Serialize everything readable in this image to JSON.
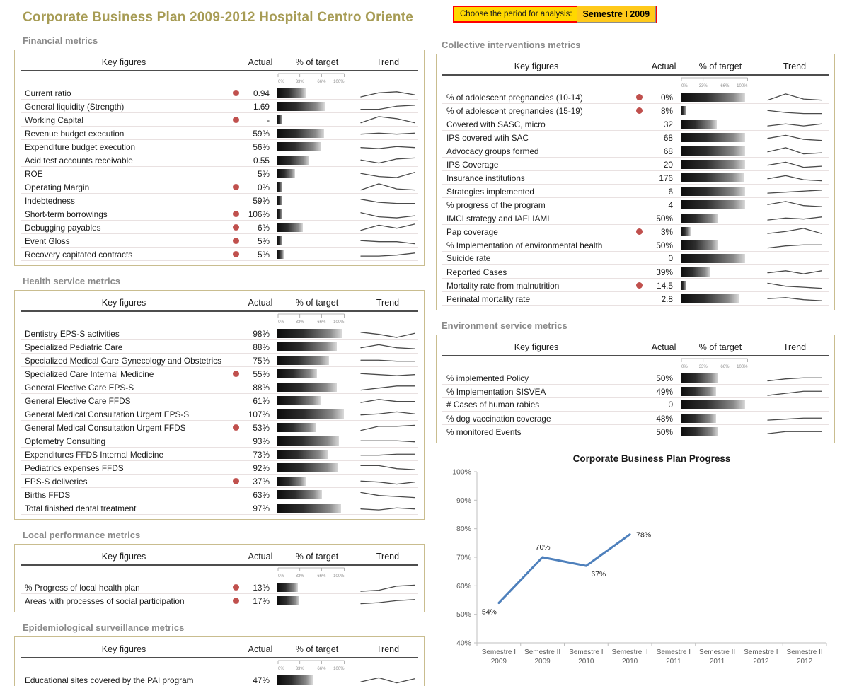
{
  "page_title": "Corporate Business Plan 2009-2012 Hospital Centro Oriente",
  "period_selector": {
    "label": "Choose the period for analysis:",
    "value": "Semestre I 2009"
  },
  "table_columns": {
    "key_figures": "Key figures",
    "actual": "Actual",
    "target": "% of target",
    "trend": "Trend"
  },
  "target_scale_labels": [
    "0%",
    "33%",
    "66%",
    "100%"
  ],
  "colors": {
    "title": "#A79C55",
    "section_title": "#8A8A8A",
    "table_border": "#C9BD8F",
    "alert_dot": "#C0504D",
    "bar_dark": "#0d0d0d",
    "chooser_bg": "#FFD800",
    "chooser_border": "#FF0000",
    "chart_line": "#4E80BC"
  },
  "tables": [
    {
      "id": "financial",
      "title": "Financial metrics",
      "column": "left",
      "rows": [
        {
          "name": "Current ratio",
          "alert": true,
          "actual": "0.94",
          "target_pct": 42,
          "trend": [
            1,
            5,
            6,
            3
          ]
        },
        {
          "name": "General liquidity (Strength)",
          "alert": false,
          "actual": "1.69",
          "target_pct": 70,
          "trend": [
            2,
            2,
            5,
            6
          ]
        },
        {
          "name": "Working Capital",
          "alert": true,
          "actual": "-",
          "target_pct": 7,
          "trend": [
            2,
            8,
            6,
            2
          ]
        },
        {
          "name": "Revenue budget execution",
          "alert": false,
          "actual": "59%",
          "target_pct": 69,
          "trend": [
            4,
            5,
            4,
            5
          ]
        },
        {
          "name": "Expenditure budget execution",
          "alert": false,
          "actual": "56%",
          "target_pct": 65,
          "trend": [
            4,
            3,
            5,
            4
          ]
        },
        {
          "name": "Acid test accounts receivable",
          "alert": false,
          "actual": "0.55",
          "target_pct": 47,
          "trend": [
            5,
            2,
            6,
            7
          ]
        },
        {
          "name": "ROE",
          "alert": false,
          "actual": "5%",
          "target_pct": 26,
          "trend": [
            5,
            2,
            1,
            6
          ]
        },
        {
          "name": "Operating Margin",
          "alert": true,
          "actual": "0%",
          "target_pct": 7,
          "trend": [
            2,
            8,
            3,
            2
          ]
        },
        {
          "name": "Indebtedness",
          "alert": false,
          "actual": "59%",
          "target_pct": 7,
          "trend": [
            6,
            3,
            2,
            2
          ]
        },
        {
          "name": "Short-term borrowings",
          "alert": true,
          "actual": "106%",
          "target_pct": 7,
          "trend": [
            6,
            2,
            1,
            3
          ]
        },
        {
          "name": "Debugging payables",
          "alert": true,
          "actual": "6%",
          "target_pct": 37,
          "trend": [
            2,
            7,
            4,
            8
          ]
        },
        {
          "name": "Event Gloss",
          "alert": true,
          "actual": "5%",
          "target_pct": 7,
          "trend": [
            5,
            4,
            4,
            2
          ]
        },
        {
          "name": "Recovery capitated contracts",
          "alert": true,
          "actual": "5%",
          "target_pct": 9,
          "trend": [
            3,
            3,
            4,
            6
          ]
        }
      ]
    },
    {
      "id": "health",
      "title": "Health service metrics",
      "column": "left",
      "rows": [
        {
          "name": "Dentistry EPS-S activities",
          "alert": false,
          "actual": "98%",
          "target_pct": 95,
          "trend": [
            6,
            4,
            1,
            5
          ]
        },
        {
          "name": "Specialized Pediatric Care",
          "alert": false,
          "actual": "88%",
          "target_pct": 87,
          "trend": [
            4,
            7,
            4,
            3
          ]
        },
        {
          "name": "Specialized Medical Care Gynecology and Obstetrics",
          "alert": false,
          "actual": "75%",
          "target_pct": 76,
          "trend": [
            5,
            5,
            4,
            4
          ]
        },
        {
          "name": "Specialized Care Internal Medicine",
          "alert": true,
          "actual": "55%",
          "target_pct": 58,
          "trend": [
            5,
            4,
            3,
            4
          ]
        },
        {
          "name": "General Elective Care EPS-S",
          "alert": false,
          "actual": "88%",
          "target_pct": 87,
          "trend": [
            2,
            4,
            6,
            6
          ]
        },
        {
          "name": "General Elective Care FFDS",
          "alert": false,
          "actual": "61%",
          "target_pct": 64,
          "trend": [
            3,
            6,
            4,
            4
          ]
        },
        {
          "name": "General Medical Consultation Urgent EPS-S",
          "alert": false,
          "actual": "107%",
          "target_pct": 98,
          "trend": [
            4,
            5,
            7,
            5
          ]
        },
        {
          "name": "General Medical Consultation Urgent FFDS",
          "alert": true,
          "actual": "53%",
          "target_pct": 57,
          "trend": [
            2,
            6,
            6,
            7
          ]
        },
        {
          "name": "Optometry Consulting",
          "alert": false,
          "actual": "93%",
          "target_pct": 91,
          "trend": [
            5,
            5,
            5,
            4
          ]
        },
        {
          "name": "Expenditures FFDS Internal Medicine",
          "alert": false,
          "actual": "73%",
          "target_pct": 75,
          "trend": [
            4,
            4,
            5,
            5
          ]
        },
        {
          "name": "Pediatrics expenses FFDS",
          "alert": false,
          "actual": "92%",
          "target_pct": 90,
          "trend": [
            7,
            7,
            4,
            3
          ]
        },
        {
          "name": "EPS-S deliveries",
          "alert": true,
          "actual": "37%",
          "target_pct": 42,
          "trend": [
            5,
            4,
            2,
            4
          ]
        },
        {
          "name": "Births FFDS",
          "alert": false,
          "actual": "63%",
          "target_pct": 66,
          "trend": [
            7,
            4,
            3,
            2
          ]
        },
        {
          "name": "Total finished dental treatment",
          "alert": false,
          "actual": "97%",
          "target_pct": 94,
          "trend": [
            4,
            3,
            5,
            4
          ]
        }
      ]
    },
    {
      "id": "local",
      "title": "Local performance metrics",
      "column": "left",
      "rows": [
        {
          "name": "% Progress of local health plan",
          "alert": true,
          "actual": "13%",
          "target_pct": 30,
          "trend": [
            1,
            2,
            6,
            7
          ]
        },
        {
          "name": "Areas with processes of social participation",
          "alert": true,
          "actual": "17%",
          "target_pct": 32,
          "trend": [
            2,
            3,
            5,
            6
          ]
        }
      ]
    },
    {
      "id": "epidemiological",
      "title": "Epidemiological surveillance metrics",
      "column": "left",
      "rows": [
        {
          "name": "Educational sites covered by the PAI program",
          "alert": false,
          "actual": "47%",
          "target_pct": 52,
          "trend": [
            3,
            7,
            2,
            6
          ]
        }
      ]
    },
    {
      "id": "collective",
      "title": "Collective interventions metrics",
      "column": "right",
      "rows": [
        {
          "name": "% of adolescent pregnancies (10-14)",
          "alert": true,
          "actual": "0%",
          "target_pct": 95,
          "trend": [
            2,
            8,
            3,
            2
          ]
        },
        {
          "name": "% of adolescent pregnancies (15-19)",
          "alert": true,
          "actual": "8%",
          "target_pct": 8,
          "trend": [
            5,
            3,
            2,
            2
          ]
        },
        {
          "name": "Covered with SASC, micro",
          "alert": false,
          "actual": "32",
          "target_pct": 53,
          "trend": [
            3,
            5,
            3,
            5
          ]
        },
        {
          "name": "IPS covered wtih SAC",
          "alert": false,
          "actual": "68",
          "target_pct": 95,
          "trend": [
            4,
            7,
            3,
            2
          ]
        },
        {
          "name": "Advocacy groups formed",
          "alert": false,
          "actual": "68",
          "target_pct": 95,
          "trend": [
            4,
            8,
            2,
            3
          ]
        },
        {
          "name": "IPS Coverage",
          "alert": false,
          "actual": "20",
          "target_pct": 95,
          "trend": [
            4,
            7,
            2,
            3
          ]
        },
        {
          "name": "Insurance institutions",
          "alert": false,
          "actual": "176",
          "target_pct": 93,
          "trend": [
            4,
            7,
            3,
            2
          ]
        },
        {
          "name": "Strategies implemented",
          "alert": false,
          "actual": "6",
          "target_pct": 95,
          "trend": [
            3,
            4,
            5,
            6
          ]
        },
        {
          "name": "% progress of the program",
          "alert": false,
          "actual": "4",
          "target_pct": 95,
          "trend": [
            5,
            8,
            4,
            3
          ]
        },
        {
          "name": "IMCI strategy and IAFI IAMI",
          "alert": false,
          "actual": "50%",
          "target_pct": 55,
          "trend": [
            3,
            5,
            4,
            6
          ]
        },
        {
          "name": "Pap coverage",
          "alert": true,
          "actual": "3%",
          "target_pct": 15,
          "trend": [
            3,
            5,
            8,
            3
          ]
        },
        {
          "name": "% Implementation of environmental health",
          "alert": false,
          "actual": "50%",
          "target_pct": 55,
          "trend": [
            2,
            4,
            5,
            5
          ]
        },
        {
          "name": "Suicide rate",
          "alert": false,
          "actual": "0",
          "target_pct": 95,
          "trend": null
        },
        {
          "name": "Reported Cases",
          "alert": false,
          "actual": "39%",
          "target_pct": 44,
          "trend": [
            4,
            6,
            3,
            6
          ]
        },
        {
          "name": "Mortality rate from malnutrition",
          "alert": true,
          "actual": "14.5",
          "target_pct": 8,
          "trend": [
            7,
            4,
            3,
            2
          ]
        },
        {
          "name": "Perinatal mortality rate",
          "alert": false,
          "actual": "2.8",
          "target_pct": 85,
          "trend": [
            5,
            6,
            4,
            3
          ]
        }
      ]
    },
    {
      "id": "environment",
      "title": "Environment service metrics",
      "column": "right",
      "rows": [
        {
          "name": "% implemented Policy",
          "alert": false,
          "actual": "50%",
          "target_pct": 55,
          "trend": [
            2,
            4,
            5,
            5
          ]
        },
        {
          "name": "% Implementation SISVEA",
          "alert": false,
          "actual": "49%",
          "target_pct": 52,
          "trend": [
            1,
            3,
            5,
            5
          ]
        },
        {
          "name": "# Cases of human rabies",
          "alert": false,
          "actual": "0",
          "target_pct": 95,
          "trend": null
        },
        {
          "name": "% dog vaccination coverage",
          "alert": false,
          "actual": "48%",
          "target_pct": 52,
          "trend": [
            3,
            4,
            5,
            5
          ]
        },
        {
          "name": "% monitored Events",
          "alert": false,
          "actual": "50%",
          "target_pct": 55,
          "trend": [
            3,
            5,
            5,
            5
          ]
        }
      ]
    }
  ],
  "chart_data": {
    "type": "line",
    "title": "Corporate Business Plan Progress",
    "categories": [
      [
        "Semestre I",
        "2009"
      ],
      [
        "Semestre II",
        "2009"
      ],
      [
        "Semestre I",
        "2010"
      ],
      [
        "Semestre II",
        "2010"
      ],
      [
        "Semestre I",
        "2011"
      ],
      [
        "Semestre II",
        "2011"
      ],
      [
        "Semestre I",
        "2012"
      ],
      [
        "Semestre II",
        "2012"
      ]
    ],
    "values": [
      54,
      70,
      67,
      78,
      null,
      null,
      null,
      null
    ],
    "data_labels": [
      "54%",
      "70%",
      "67%",
      "78%"
    ],
    "label_positions": [
      "below-left",
      "above",
      "below-right",
      "right"
    ],
    "ylim": [
      40,
      100
    ],
    "ytick_step": 10,
    "ytick_labels": [
      "40%",
      "50%",
      "60%",
      "70%",
      "80%",
      "90%",
      "100%"
    ],
    "xlabel": "",
    "ylabel": "",
    "grid": false,
    "legend": "none",
    "line_color": "#4E80BC"
  }
}
